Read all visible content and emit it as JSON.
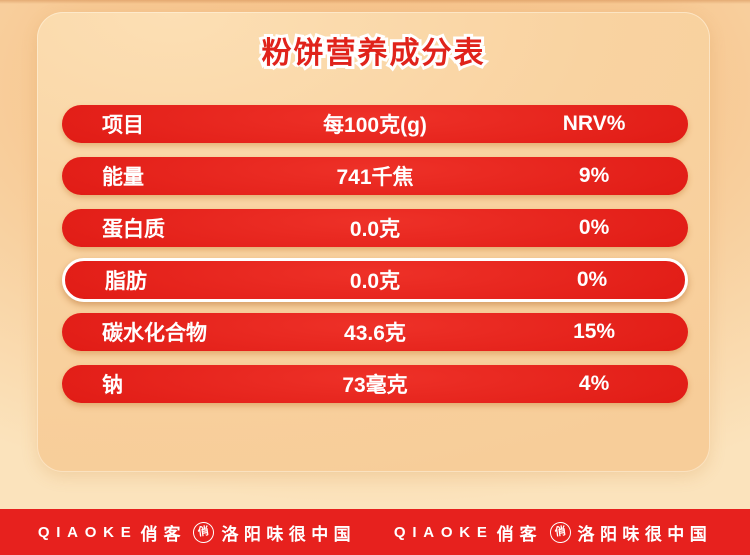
{
  "title": "粉饼营养成分表",
  "table": {
    "header": {
      "item": "项目",
      "amount": "每100克(g)",
      "nrv": "NRV%"
    },
    "rows": [
      {
        "item": "能量",
        "amount": "741千焦",
        "nrv": "9%",
        "highlighted": false
      },
      {
        "item": "蛋白质",
        "amount": "0.0克",
        "nrv": "0%",
        "highlighted": false
      },
      {
        "item": "脂肪",
        "amount": "0.0克",
        "nrv": "0%",
        "highlighted": true
      },
      {
        "item": "碳水化合物",
        "amount": "43.6克",
        "nrv": "15%",
        "highlighted": false
      },
      {
        "item": "钠",
        "amount": "73毫克",
        "nrv": "4%",
        "highlighted": false
      }
    ]
  },
  "footer": {
    "segments": [
      {
        "brand_latin": "QIAOKE",
        "brand_cn": "俏客",
        "badge_char": "俏",
        "slogan": "洛阳味很中国"
      },
      {
        "brand_latin": "QIAOKE",
        "brand_cn": "俏客",
        "badge_char": "俏",
        "slogan": "洛阳味很中国"
      }
    ]
  },
  "colors": {
    "pill_red": "#e11c16",
    "pill_red_dark": "#bd120e",
    "footer_red": "#e7211e",
    "title_red": "#e0231b",
    "text_white": "#ffffff",
    "background_peach_top": "#f6c28a",
    "background_peach_bottom": "#fbe3bc",
    "card_peach": "#f9d3a1"
  }
}
